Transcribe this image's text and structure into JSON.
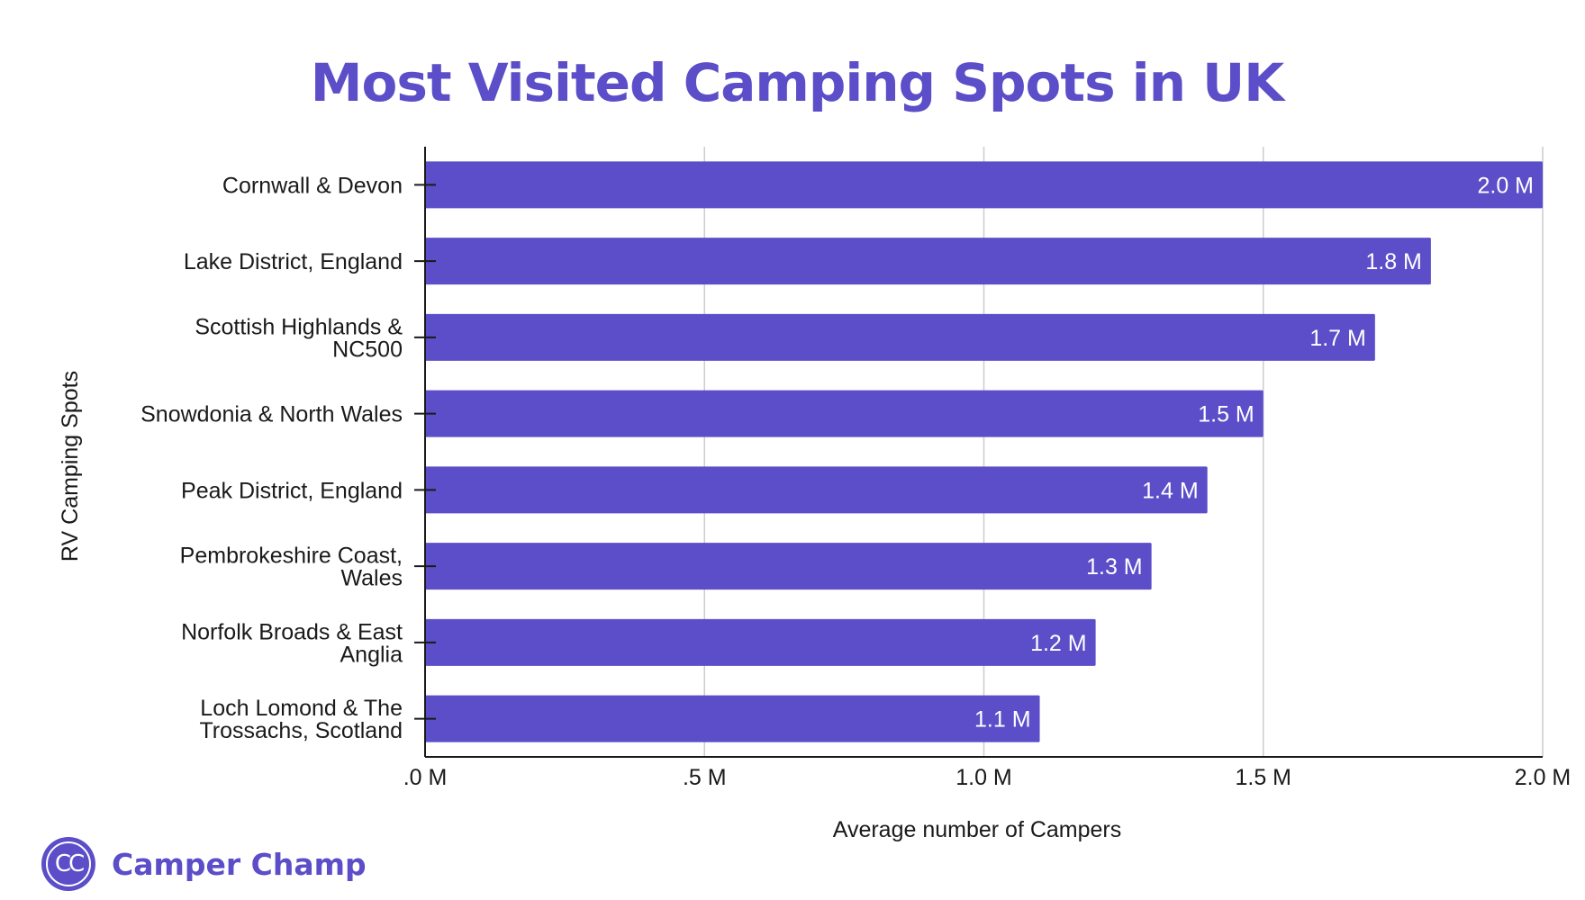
{
  "brand": {
    "name": "Camper Champ",
    "mark": "CC",
    "color": "#5b4ec8"
  },
  "chart_data": {
    "type": "bar",
    "orientation": "horizontal",
    "title": "Most Visited Camping Spots in UK",
    "xlabel": "Average number of Campers",
    "ylabel": "RV Camping Spots",
    "categories": [
      [
        "Cornwall & Devon"
      ],
      [
        "Lake District, England"
      ],
      [
        "Scottish Highlands &",
        "NC500"
      ],
      [
        "Snowdonia & North Wales"
      ],
      [
        "Peak District, England"
      ],
      [
        "Pembrokeshire Coast,",
        "Wales"
      ],
      [
        "Norfolk Broads & East",
        "Anglia"
      ],
      [
        "Loch Lomond & The",
        "Trossachs, Scotland"
      ]
    ],
    "values": [
      2000000,
      1800000,
      1700000,
      1500000,
      1400000,
      1300000,
      1200000,
      1100000
    ],
    "data_labels": [
      "2.0 M",
      "1.8 M",
      "1.7 M",
      "1.5 M",
      "1.4 M",
      "1.3 M",
      "1.2 M",
      "1.1 M"
    ],
    "xlim": [
      0,
      2000000
    ],
    "xticks": [
      0,
      500000,
      1000000,
      1500000,
      2000000
    ],
    "xtick_labels": [
      ".0 M",
      ".5 M",
      "1.0 M",
      "1.5 M",
      "2.0 M"
    ],
    "grid": "vertical",
    "bar_color": "#5b4ec8",
    "legend": "none"
  }
}
